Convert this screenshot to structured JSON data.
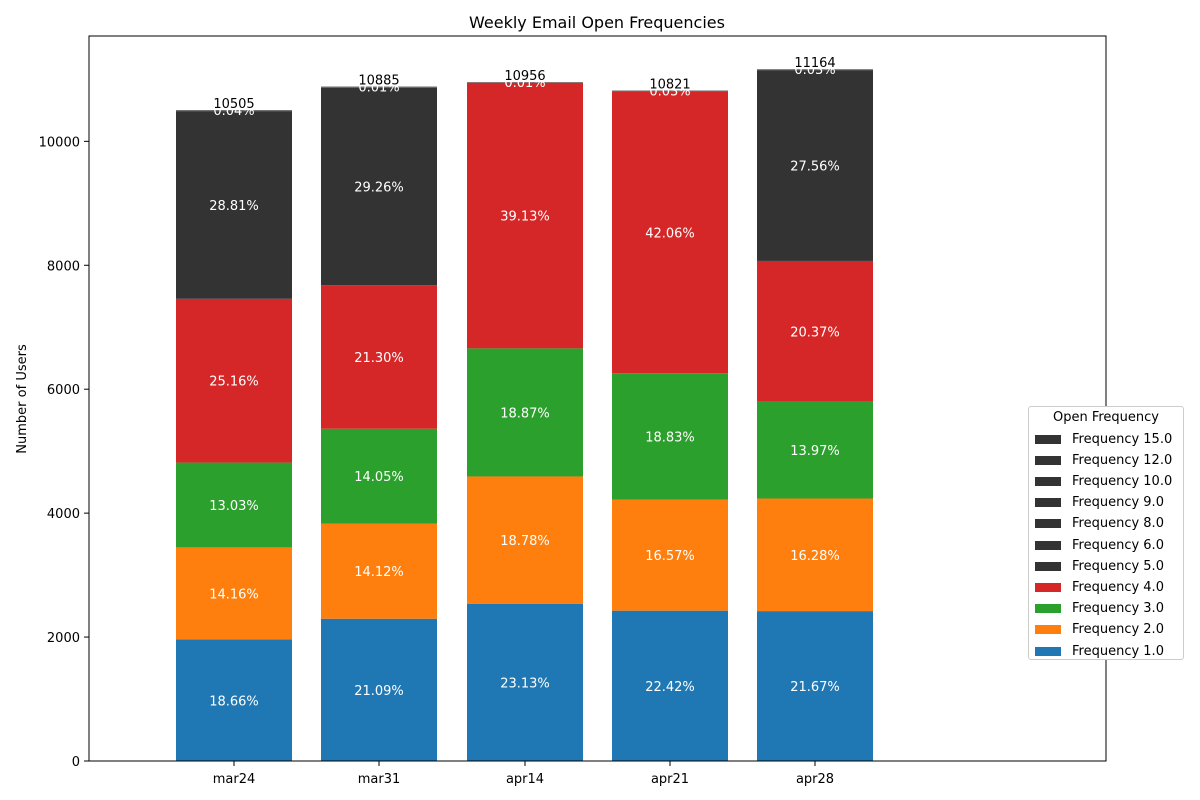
{
  "chart_data": {
    "type": "bar",
    "stacked": true,
    "title": "Weekly Email Open Frequencies",
    "xlabel": "",
    "ylabel": "Number of Users",
    "ylim": [
      0,
      11700
    ],
    "yticks": [
      0,
      2000,
      4000,
      6000,
      8000,
      10000
    ],
    "grid": false,
    "categories": [
      "mar24",
      "mar31",
      "apr14",
      "apr21",
      "apr28"
    ],
    "totals": [
      10505,
      10885,
      10956,
      10821,
      11164
    ],
    "legend": {
      "title": "Open Frequency",
      "placement": "center-right",
      "order": "reverse"
    },
    "series": [
      {
        "name": "Frequency 1.0",
        "color": "#1f77b4",
        "values": [
          1960,
          2296,
          2534,
          2426,
          2419
        ],
        "labels": [
          "18.66%",
          "21.09%",
          "23.13%",
          "22.42%",
          "21.67%"
        ]
      },
      {
        "name": "Frequency 2.0",
        "color": "#ff7f0e",
        "values": [
          1487,
          1537,
          2058,
          1793,
          1817
        ],
        "labels": [
          "14.16%",
          "14.12%",
          "18.78%",
          "16.57%",
          "16.28%"
        ]
      },
      {
        "name": "Frequency 3.0",
        "color": "#2ca02c",
        "values": [
          1369,
          1529,
          2067,
          2038,
          1560
        ],
        "labels": [
          "13.03%",
          "14.05%",
          "18.87%",
          "18.83%",
          "13.97%"
        ]
      },
      {
        "name": "Frequency 4.0",
        "color": "#d62728",
        "values": [
          2643,
          2318,
          4287,
          4551,
          2274
        ],
        "labels": [
          "25.16%",
          "21.30%",
          "39.13%",
          "42.06%",
          "20.37%"
        ]
      },
      {
        "name": "Frequency 5.0",
        "color": "#333333",
        "values": [
          3026,
          3185,
          3,
          3,
          3077
        ],
        "labels": [
          "28.81%",
          "29.26%",
          "",
          "",
          "27.56%"
        ]
      },
      {
        "name": "Frequency 6.0",
        "color": "#333333",
        "values": [
          6,
          7,
          2,
          4,
          5
        ],
        "labels": [
          "",
          "",
          "",
          "",
          ""
        ]
      },
      {
        "name": "Frequency 8.0",
        "color": "#333333",
        "values": [
          4,
          4,
          2,
          2,
          4
        ],
        "labels": [
          "",
          "",
          "",
          "",
          ""
        ]
      },
      {
        "name": "Frequency 9.0",
        "color": "#333333",
        "values": [
          4,
          3,
          1,
          2,
          3
        ],
        "labels": [
          "",
          "",
          "",
          "",
          ""
        ]
      },
      {
        "name": "Frequency 10.0",
        "color": "#333333",
        "values": [
          3,
          3,
          1,
          1,
          2
        ],
        "labels": [
          "",
          "",
          "",
          "",
          ""
        ]
      },
      {
        "name": "Frequency 12.0",
        "color": "#333333",
        "values": [
          2,
          2,
          1,
          1,
          2
        ],
        "labels": [
          "",
          "",
          "",
          "",
          ""
        ]
      },
      {
        "name": "Frequency 15.0",
        "color": "#333333",
        "values": [
          1,
          1,
          0,
          0,
          1
        ],
        "labels": [
          "",
          "",
          "",
          "",
          ""
        ]
      }
    ],
    "top_overlap_labels": [
      "0.04%",
      "0.01%",
      "0.01%",
      "0.03%",
      "0.03%"
    ]
  }
}
